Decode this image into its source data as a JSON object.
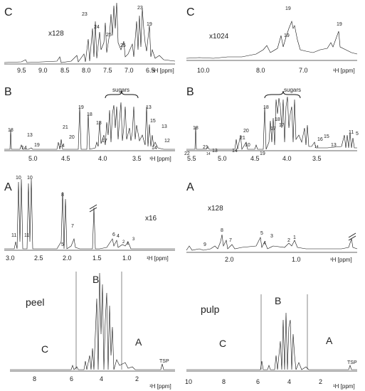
{
  "panels": {
    "left_C": {
      "letter": "C",
      "scale": "x128",
      "ticks": [
        "9.5",
        "9.0",
        "8.5",
        "8.0",
        "7.5",
        "7.0",
        "6.5"
      ],
      "axis_unit": "¹H [ppm]",
      "peak_labels": [
        "23",
        "24",
        "25",
        "25",
        "23",
        "19"
      ]
    },
    "right_C": {
      "letter": "C",
      "scale": "x1024",
      "ticks": [
        "10.0",
        "8.0",
        "7.0"
      ],
      "axis_unit": "¹H [ppm]",
      "peak_labels": [
        "19",
        "19",
        "19"
      ]
    },
    "left_B": {
      "letter": "B",
      "annotation": "sugars",
      "ticks": [
        "5.0",
        "4.5",
        "4.0",
        "3.5"
      ],
      "axis_unit": "¹H [ppm]",
      "peak_labels": [
        "18",
        "13",
        "14",
        "19",
        "21",
        "20",
        "14",
        "19",
        "18",
        "17",
        "18",
        "13",
        "15",
        "13",
        "14",
        "12"
      ]
    },
    "right_B": {
      "letter": "B",
      "annotation": "sugars",
      "ticks": [
        "5.5",
        "5.0",
        "4.5",
        "4.0",
        "3.5"
      ],
      "axis_unit": "¹H [ppm]",
      "peak_labels": [
        "18",
        "21",
        "14",
        "13",
        "22",
        "20",
        "21",
        "10",
        "14",
        "19",
        "18",
        "17",
        "18",
        "17",
        "16",
        "15",
        "14",
        "13",
        "11",
        "5"
      ]
    },
    "left_A": {
      "letter": "A",
      "scale": "x16",
      "ticks": [
        "3.0",
        "2.5",
        "2.0",
        "1.5",
        "1.0"
      ],
      "axis_unit": "¹H [ppm]",
      "peak_labels": [
        "10",
        "10",
        "11",
        "11",
        "8",
        "7",
        "5",
        "6",
        "4",
        "2",
        "1",
        "3"
      ]
    },
    "right_A": {
      "letter": "A",
      "scale": "x128",
      "ticks": [
        "2.0",
        "1.0"
      ],
      "axis_unit": "¹H [ppm]",
      "peak_labels": [
        "9",
        "8",
        "7",
        "5",
        "4",
        "3",
        "2",
        "1"
      ]
    },
    "peel": {
      "title": "peel",
      "regions": [
        "C",
        "B",
        "A"
      ],
      "ref": "TSP",
      "ticks": [
        "8",
        "6",
        "4",
        "2"
      ],
      "axis_unit": "¹H [ppm]"
    },
    "pulp": {
      "title": "pulp",
      "regions": [
        "C",
        "B",
        "A"
      ],
      "ref": "TSP",
      "ticks": [
        "10",
        "8",
        "6",
        "4",
        "2"
      ],
      "axis_unit": "¹H [ppm]"
    }
  }
}
